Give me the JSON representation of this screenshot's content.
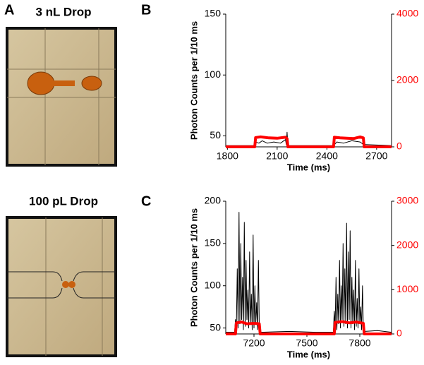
{
  "labels": {
    "a": "A",
    "b": "B",
    "c": "C",
    "drop_a": "3 nL Drop",
    "drop_c": "100 pL Drop"
  },
  "chart_data": [
    {
      "type": "line",
      "y_label": "Photon Counts per 1/10 ms",
      "x_label": "Time (ms)",
      "xlim": [
        1790,
        2790
      ],
      "xticks": [
        1800,
        2100,
        2400,
        2700
      ],
      "ylim": [
        41,
        150
      ],
      "yticks": [
        50,
        100,
        150
      ],
      "y2lim": [
        0,
        4000
      ],
      "y2ticks": [
        0,
        2000,
        4000
      ],
      "series": [
        {
          "color": "#000000",
          "x": [
            1790,
            1960,
            1970,
            1990,
            2010,
            2040,
            2080,
            2120,
            2150,
            2155,
            2160,
            2165,
            2200,
            2440,
            2460,
            2500,
            2550,
            2600,
            2620,
            2790
          ],
          "values": [
            42,
            42,
            45,
            44,
            46,
            44,
            45,
            44,
            47,
            43,
            53,
            42,
            42,
            42,
            45,
            44,
            46,
            45,
            43,
            42
          ]
        },
        {
          "color": "#ff0000",
          "axis": "y2",
          "x": [
            1790,
            1965,
            1970,
            2000,
            2050,
            2100,
            2150,
            2160,
            2165,
            2440,
            2445,
            2480,
            2520,
            2560,
            2600,
            2620,
            2625,
            2790
          ],
          "values": [
            0,
            0,
            280,
            300,
            270,
            260,
            290,
            250,
            0,
            0,
            290,
            270,
            260,
            250,
            300,
            270,
            0,
            0
          ]
        }
      ]
    },
    {
      "type": "line",
      "y_label": "Photon Counts per 1/10 ms",
      "x_label": "Time (ms)",
      "xlim": [
        7040,
        7980
      ],
      "xticks": [
        7200,
        7500,
        7800
      ],
      "ylim": [
        43,
        200
      ],
      "yticks": [
        50,
        100,
        150,
        200
      ],
      "y2lim": [
        0,
        3000
      ],
      "y2ticks": [
        0,
        1000,
        2000,
        3000
      ],
      "series": [
        {
          "color": "#000000",
          "x": [
            7040,
            7090,
            7095,
            7100,
            7105,
            7110,
            7115,
            7120,
            7125,
            7130,
            7135,
            7140,
            7145,
            7150,
            7155,
            7160,
            7165,
            7170,
            7175,
            7180,
            7185,
            7190,
            7195,
            7200,
            7205,
            7210,
            7215,
            7220,
            7225,
            7230,
            7240,
            7400,
            7550,
            7650,
            7655,
            7660,
            7665,
            7670,
            7675,
            7680,
            7685,
            7690,
            7695,
            7700,
            7705,
            7710,
            7715,
            7720,
            7725,
            7730,
            7735,
            7740,
            7745,
            7750,
            7755,
            7760,
            7765,
            7770,
            7775,
            7780,
            7785,
            7790,
            7795,
            7800,
            7805,
            7810,
            7815,
            7820,
            7830,
            7900,
            7980
          ],
          "values": [
            45,
            45,
            60,
            48,
            120,
            50,
            187,
            55,
            150,
            60,
            110,
            48,
            175,
            52,
            130,
            60,
            95,
            50,
            140,
            55,
            90,
            48,
            160,
            50,
            100,
            55,
            80,
            48,
            130,
            50,
            45,
            46,
            45,
            45,
            70,
            50,
            110,
            48,
            90,
            55,
            130,
            50,
            100,
            60,
            150,
            52,
            120,
            55,
            174,
            50,
            140,
            60,
            165,
            50,
            110,
            55,
            95,
            48,
            130,
            52,
            85,
            50,
            120,
            55,
            75,
            48,
            100,
            50,
            46,
            47,
            45
          ]
        },
        {
          "color": "#ff0000",
          "axis": "y2",
          "x": [
            7040,
            7095,
            7100,
            7130,
            7160,
            7200,
            7230,
            7235,
            7655,
            7660,
            7700,
            7740,
            7780,
            7820,
            7825,
            7980
          ],
          "values": [
            0,
            0,
            250,
            270,
            230,
            240,
            230,
            0,
            0,
            260,
            280,
            250,
            270,
            240,
            0,
            0
          ]
        }
      ]
    }
  ]
}
